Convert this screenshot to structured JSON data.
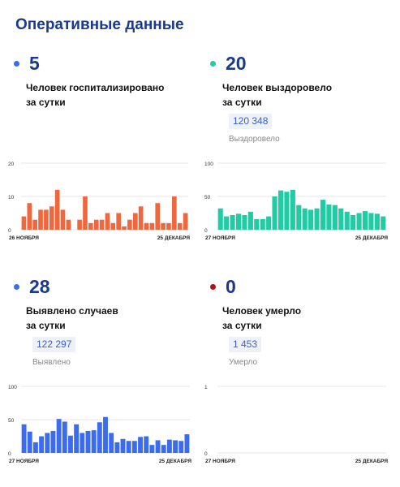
{
  "page_title": "Оперативные данные",
  "panels": [
    {
      "value": "5",
      "dot_color": "#3b6cf0",
      "desc_line1": "Человек госпитализировано",
      "desc_line2": "за сутки",
      "total": null,
      "total_label": null
    },
    {
      "value": "20",
      "dot_color": "#1fcca3",
      "desc_line1": "Человек выздоровело",
      "desc_line2": "за сутки",
      "total": "120 348",
      "total_label": "Выздоровело"
    },
    {
      "value": "28",
      "dot_color": "#3b6cf0",
      "desc_line1": "Выявлено случаев",
      "desc_line2": "за сутки",
      "total": "122 297",
      "total_label": "Выявлено"
    },
    {
      "value": "0",
      "dot_color": "#b0101a",
      "desc_line1": "Человек умерло",
      "desc_line2": "за сутки",
      "total": "1 453",
      "total_label": "Умерло"
    }
  ],
  "chart_data": [
    {
      "type": "bar",
      "color": "#f0673e",
      "ylim": [
        0,
        20
      ],
      "yticks": [
        20,
        10,
        0
      ],
      "grid": true,
      "x_start": "26 НОЯБРЯ",
      "x_end": "25 ДЕКАБРЯ",
      "values": [
        4,
        8,
        3,
        6,
        6,
        7,
        12,
        6,
        3,
        0,
        3,
        10,
        2,
        3,
        3,
        5,
        2,
        5,
        1,
        3,
        5,
        7,
        2,
        2,
        8,
        2,
        2,
        10,
        2,
        5
      ]
    },
    {
      "type": "bar",
      "color": "#1fcca3",
      "ylim": [
        0,
        100
      ],
      "yticks": [
        100,
        50,
        0
      ],
      "grid": true,
      "x_start": "27 НОЯБРЯ",
      "x_end": "25 ДЕКАБРЯ",
      "values": [
        32,
        20,
        22,
        24,
        22,
        27,
        16,
        16,
        20,
        50,
        59,
        57,
        60,
        37,
        32,
        30,
        32,
        45,
        38,
        37,
        32,
        27,
        22,
        25,
        28,
        25,
        24,
        20
      ]
    },
    {
      "type": "bar",
      "color": "#3b6cf0",
      "ylim": [
        0,
        100
      ],
      "yticks": [
        100,
        50,
        0
      ],
      "grid": true,
      "x_start": "27 НОЯБРЯ",
      "x_end": "25 ДЕКАБРЯ",
      "values": [
        43,
        32,
        16,
        25,
        30,
        33,
        51,
        47,
        26,
        43,
        30,
        33,
        34,
        46,
        54,
        30,
        16,
        21,
        18,
        18,
        24,
        25,
        12,
        19,
        12,
        20,
        19,
        18,
        28
      ]
    },
    {
      "type": "bar",
      "color": "#b0101a",
      "ylim": [
        0,
        1
      ],
      "yticks": [
        1,
        0
      ],
      "grid": true,
      "x_start": "27 НОЯБРЯ",
      "x_end": "25 ДЕКАБРЯ",
      "values": [
        0,
        0,
        0,
        0,
        0,
        0,
        0,
        0,
        0,
        0,
        0,
        0,
        0,
        0,
        0,
        0,
        0,
        0,
        0,
        0,
        0,
        0,
        0,
        0,
        0,
        0,
        0,
        0,
        0
      ]
    }
  ]
}
